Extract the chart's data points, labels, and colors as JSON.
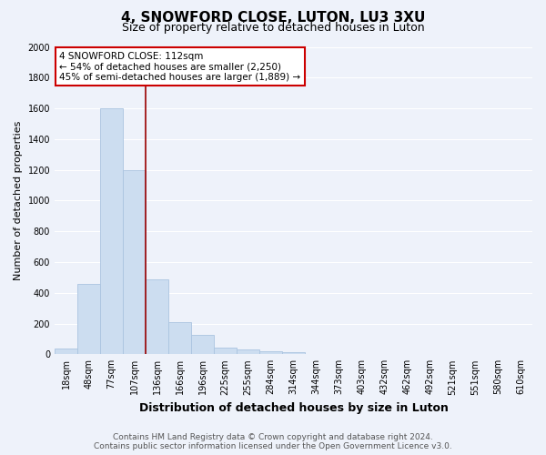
{
  "title": "4, SNOWFORD CLOSE, LUTON, LU3 3XU",
  "subtitle": "Size of property relative to detached houses in Luton",
  "xlabel": "Distribution of detached houses by size in Luton",
  "ylabel": "Number of detached properties",
  "bin_labels": [
    "18sqm",
    "48sqm",
    "77sqm",
    "107sqm",
    "136sqm",
    "166sqm",
    "196sqm",
    "225sqm",
    "255sqm",
    "284sqm",
    "314sqm",
    "344sqm",
    "373sqm",
    "403sqm",
    "432sqm",
    "462sqm",
    "492sqm",
    "521sqm",
    "551sqm",
    "580sqm",
    "610sqm"
  ],
  "bar_values": [
    35,
    460,
    1600,
    1200,
    490,
    210,
    125,
    45,
    30,
    20,
    15,
    0,
    0,
    0,
    0,
    0,
    0,
    0,
    0,
    0,
    0
  ],
  "bar_color": "#ccddf0",
  "bar_edge_color": "#aac4e0",
  "vline_color": "#990000",
  "annotation_text_line1": "4 SNOWFORD CLOSE: 112sqm",
  "annotation_text_line2": "← 54% of detached houses are smaller (2,250)",
  "annotation_text_line3": "45% of semi-detached houses are larger (1,889) →",
  "annotation_box_facecolor": "#ffffff",
  "annotation_box_edgecolor": "#cc0000",
  "ylim": [
    0,
    2000
  ],
  "yticks": [
    0,
    200,
    400,
    600,
    800,
    1000,
    1200,
    1400,
    1600,
    1800,
    2000
  ],
  "footer_line1": "Contains HM Land Registry data © Crown copyright and database right 2024.",
  "footer_line2": "Contains public sector information licensed under the Open Government Licence v3.0.",
  "bg_color": "#eef2fa",
  "grid_color": "#ffffff",
  "title_fontsize": 11,
  "subtitle_fontsize": 9,
  "ylabel_fontsize": 8,
  "xlabel_fontsize": 9,
  "tick_fontsize": 7,
  "footer_fontsize": 6.5,
  "annotation_fontsize": 7.5
}
